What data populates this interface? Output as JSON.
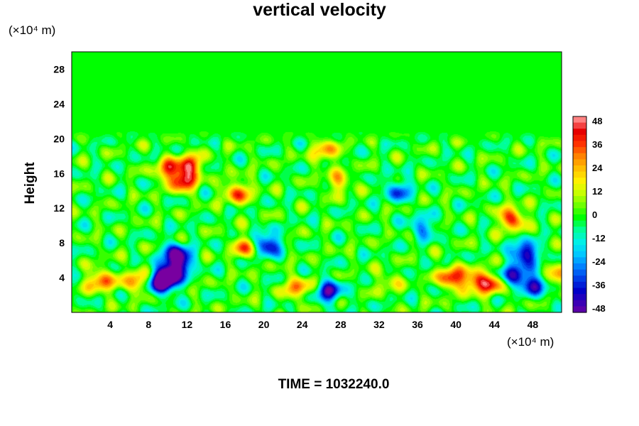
{
  "chart_data": {
    "type": "heatmap",
    "title": "vertical velocity",
    "ylabel": "Height",
    "xunit": "(×10⁴ m)",
    "yunit": "(×10⁴ m)",
    "footer": "TIME = 1032240.0",
    "xlim": [
      0,
      51
    ],
    "ylim": [
      0,
      30
    ],
    "xticks": [
      4,
      8,
      12,
      16,
      20,
      24,
      28,
      32,
      36,
      40,
      44,
      48
    ],
    "yticks": [
      4,
      8,
      12,
      16,
      20,
      24,
      28
    ],
    "colorbar": {
      "range": [
        -48,
        48
      ],
      "ticks": [
        48,
        36,
        24,
        12,
        0,
        -12,
        -24,
        -36,
        -48
      ]
    },
    "background_value": 0,
    "features": [
      {
        "x": 10.0,
        "y": 4.2,
        "value": -44
      },
      {
        "x": 9.5,
        "y": 3.4,
        "value": -44
      },
      {
        "x": 11.2,
        "y": 5.5,
        "value": -40
      },
      {
        "x": 10.8,
        "y": 6.8,
        "value": -36
      },
      {
        "x": 20.3,
        "y": 7.8,
        "value": -44
      },
      {
        "x": 26.8,
        "y": 2.4,
        "value": -40
      },
      {
        "x": 23.5,
        "y": 2.8,
        "value": 30
      },
      {
        "x": 3.0,
        "y": 3.6,
        "value": 34
      },
      {
        "x": 6.5,
        "y": 3.6,
        "value": 28
      },
      {
        "x": 11.6,
        "y": 15.2,
        "value": 44
      },
      {
        "x": 10.0,
        "y": 16.5,
        "value": 30
      },
      {
        "x": 12.3,
        "y": 17.0,
        "value": 36
      },
      {
        "x": 18.2,
        "y": 7.5,
        "value": 32
      },
      {
        "x": 17.3,
        "y": 13.8,
        "value": 34
      },
      {
        "x": 26.5,
        "y": 18.5,
        "value": 26
      },
      {
        "x": 27.8,
        "y": 15.0,
        "value": 22
      },
      {
        "x": 39.5,
        "y": 4.0,
        "value": 40
      },
      {
        "x": 42.0,
        "y": 3.6,
        "value": 36
      },
      {
        "x": 43.8,
        "y": 3.2,
        "value": 30
      },
      {
        "x": 46.2,
        "y": 4.2,
        "value": -42
      },
      {
        "x": 47.2,
        "y": 6.8,
        "value": -46
      },
      {
        "x": 48.5,
        "y": 3.2,
        "value": -38
      },
      {
        "x": 45.8,
        "y": 10.8,
        "value": 40
      },
      {
        "x": 34.0,
        "y": 14.0,
        "value": -28
      },
      {
        "x": 36.5,
        "y": 9.8,
        "value": -24
      },
      {
        "x": 50.5,
        "y": 4.0,
        "value": 30
      },
      {
        "x": 33.0,
        "y": 3.5,
        "value": 14
      }
    ]
  }
}
